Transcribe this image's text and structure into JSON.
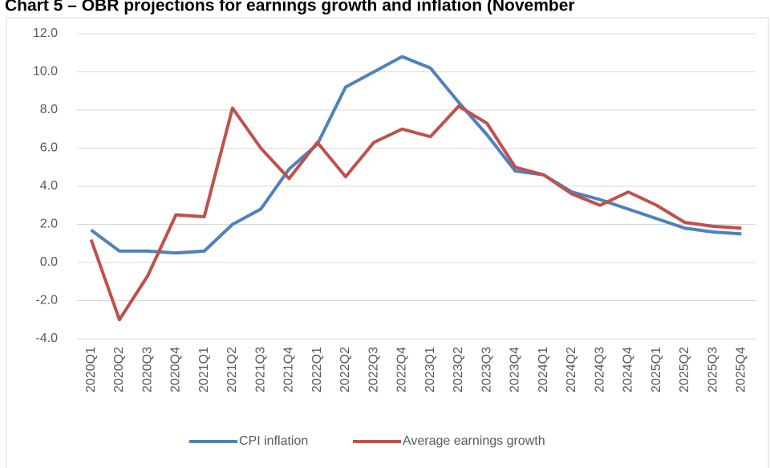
{
  "chart_data": {
    "type": "line",
    "title": "Chart 5 – OBR projections for earnings growth and inflation (November",
    "categories": [
      "2020Q1",
      "2020Q2",
      "2020Q3",
      "2020Q4",
      "2021Q1",
      "2021Q2",
      "2021Q3",
      "2021Q4",
      "2022Q1",
      "2022Q2",
      "2022Q3",
      "2022Q4",
      "2023Q1",
      "2023Q2",
      "2023Q3",
      "2023Q4",
      "2024Q1",
      "2024Q2",
      "2024Q3",
      "2024Q4",
      "2025Q1",
      "2025Q2",
      "2025Q3",
      "2025Q4"
    ],
    "series": [
      {
        "name": "CPI inflation",
        "color": "#4f81bd",
        "values": [
          1.7,
          0.6,
          0.6,
          0.5,
          0.6,
          2.0,
          2.8,
          4.9,
          6.2,
          9.2,
          10.0,
          10.8,
          10.2,
          8.4,
          6.7,
          4.8,
          4.6,
          3.7,
          3.3,
          2.8,
          2.3,
          1.8,
          1.6,
          1.5
        ]
      },
      {
        "name": "Average earnings growth",
        "color": "#c0504d",
        "values": [
          1.2,
          -3.0,
          -0.7,
          2.5,
          2.4,
          8.1,
          6.0,
          4.4,
          6.3,
          4.5,
          6.3,
          7.0,
          6.6,
          8.2,
          7.3,
          5.0,
          4.6,
          3.6,
          3.0,
          3.7,
          3.0,
          2.1,
          1.9,
          1.8
        ]
      }
    ],
    "ylim": [
      -4,
      12
    ],
    "yticks": [
      {
        "value": -4,
        "label": "-4.0"
      },
      {
        "value": -2,
        "label": "-2.0"
      },
      {
        "value": 0,
        "label": "0.0"
      },
      {
        "value": 2,
        "label": "2.0"
      },
      {
        "value": 4,
        "label": "4.0"
      },
      {
        "value": 6,
        "label": "6.0"
      },
      {
        "value": 8,
        "label": "8.0"
      },
      {
        "value": 10,
        "label": "10.0"
      },
      {
        "value": 12,
        "label": "12.0"
      }
    ],
    "grid": true,
    "legend": "bottom"
  }
}
